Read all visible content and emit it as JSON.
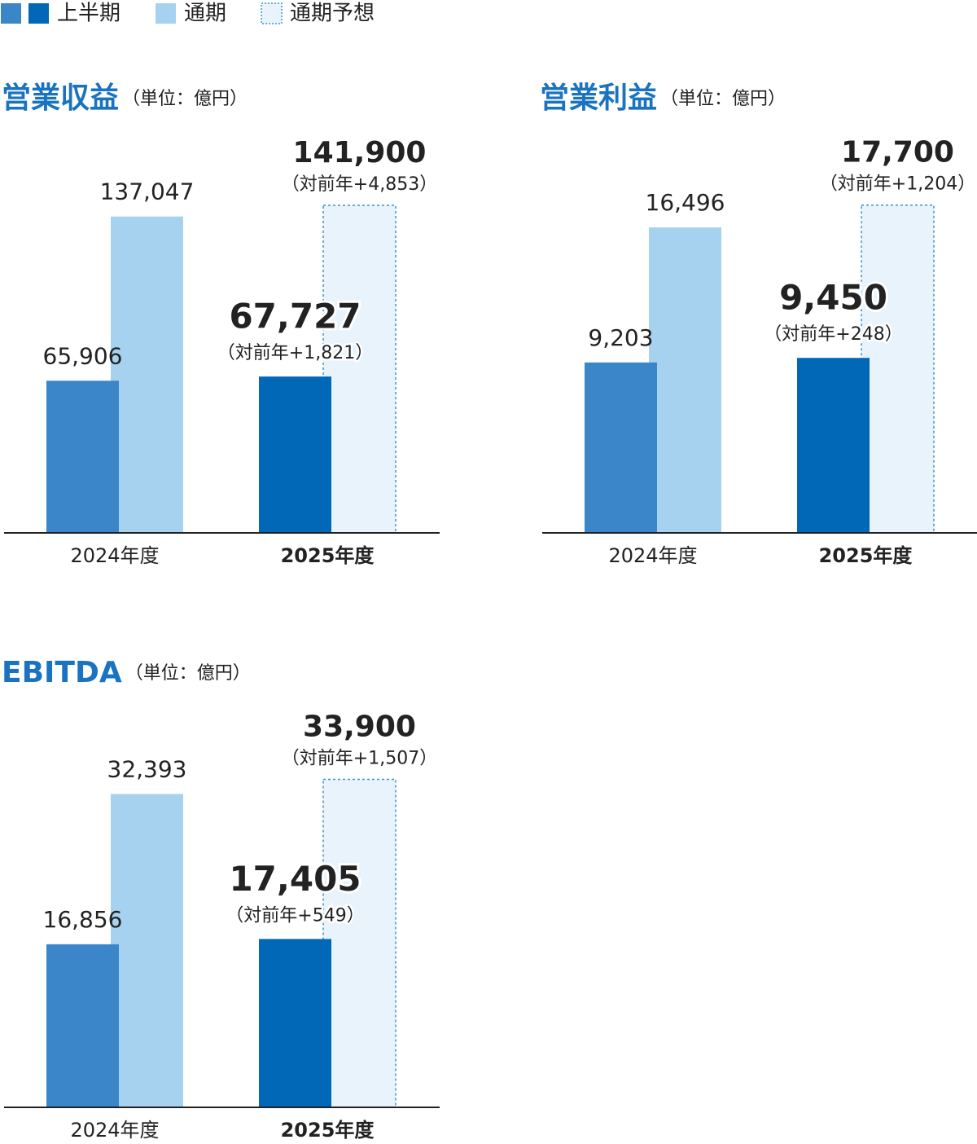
{
  "legend": [
    {
      "name": "上半期",
      "colors": [
        "#3a86c8",
        "#0068b7"
      ]
    },
    {
      "name": "通期",
      "colors": [
        "#a6d2f0"
      ]
    },
    {
      "name": "通期予想",
      "colors": [
        "#e8f3fb"
      ],
      "border": "#3a93d0",
      "dashed": true
    }
  ],
  "chart_data": [
    {
      "type": "bar",
      "title": "営業収益",
      "unit": "（単位：億円）",
      "categories": [
        "2024年度",
        "2025年度"
      ],
      "ylim": [
        0,
        150000
      ],
      "series": [
        {
          "colors": [
            "#3a86c8",
            "#0068b7"
          ],
          "values": [
            65906,
            67727
          ],
          "value_labels": [
            "65,906",
            "67,727"
          ],
          "yoy_labels": [
            null,
            "（対前年+1,821）"
          ]
        },
        {
          "color": "#a6d2f0",
          "values": [
            137047,
            null
          ],
          "value_labels": [
            "137,047",
            null
          ]
        },
        {
          "color": "#e8f3fb",
          "border": "#3a93d0",
          "dashed": true,
          "values": [
            null,
            141900
          ],
          "value_labels": [
            null,
            "141,900"
          ],
          "yoy_labels": [
            null,
            "（対前年+4,853）"
          ]
        }
      ]
    },
    {
      "type": "bar",
      "title": "営業利益",
      "unit": "（単位：億円）",
      "categories": [
        "2024年度",
        "2025年度"
      ],
      "ylim": [
        0,
        18700
      ],
      "series": [
        {
          "colors": [
            "#3a86c8",
            "#0068b7"
          ],
          "values": [
            9203,
            9450
          ],
          "value_labels": [
            "9,203",
            "9,450"
          ],
          "yoy_labels": [
            null,
            "（対前年+248）"
          ]
        },
        {
          "color": "#a6d2f0",
          "values": [
            16496,
            null
          ],
          "value_labels": [
            "16,496",
            null
          ]
        },
        {
          "color": "#e8f3fb",
          "border": "#3a93d0",
          "dashed": true,
          "values": [
            null,
            17700
          ],
          "value_labels": [
            null,
            "17,700"
          ],
          "yoy_labels": [
            null,
            "（対前年+1,204）"
          ]
        }
      ]
    },
    {
      "type": "bar",
      "title": "EBITDA",
      "unit": "（単位：億円）",
      "categories": [
        "2024年度",
        "2025年度"
      ],
      "ylim": [
        0,
        35800
      ],
      "series": [
        {
          "colors": [
            "#3a86c8",
            "#0068b7"
          ],
          "values": [
            16856,
            17405
          ],
          "value_labels": [
            "16,856",
            "17,405"
          ],
          "yoy_labels": [
            null,
            "（対前年+549）"
          ]
        },
        {
          "color": "#a6d2f0",
          "values": [
            32393,
            null
          ],
          "value_labels": [
            "32,393",
            null
          ]
        },
        {
          "color": "#e8f3fb",
          "border": "#3a93d0",
          "dashed": true,
          "values": [
            null,
            33900
          ],
          "value_labels": [
            null,
            "33,900"
          ],
          "yoy_labels": [
            null,
            "（対前年+1,507）"
          ]
        }
      ]
    }
  ]
}
